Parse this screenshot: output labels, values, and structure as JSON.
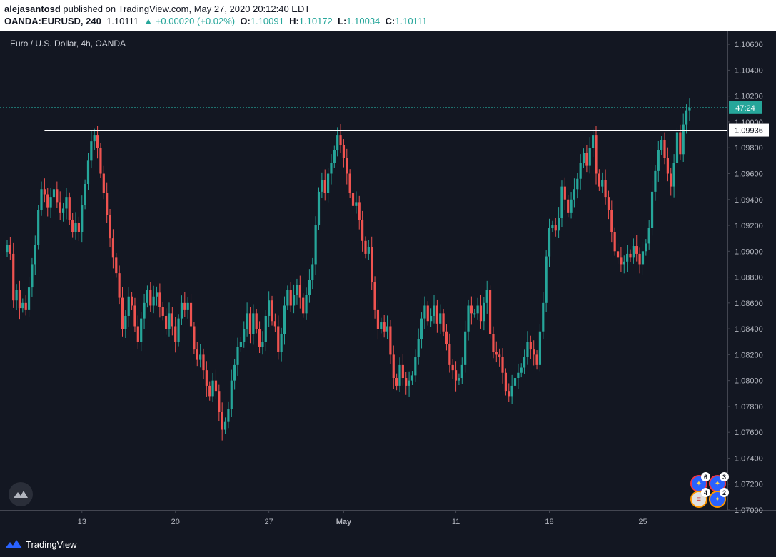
{
  "header": {
    "author": "alejasantosd",
    "published_text": " published on TradingView.com, May 27, 2020 20:12:40 EDT",
    "symbol": "OANDA:EURUSD, 240",
    "last": "1.10111",
    "change": "▲ +0.00020 (+0.02%)",
    "o_label": "O:",
    "o_value": "1.10091",
    "h_label": "H:",
    "h_value": "1.10172",
    "l_label": "L:",
    "l_value": "1.10034",
    "c_label": "C:",
    "c_value": "1.10111"
  },
  "chart_title": "Euro / U.S. Dollar, 4h, OANDA",
  "footer": {
    "brand": "TradingView"
  },
  "colors": {
    "background": "#131722",
    "up": "#26a69a",
    "down": "#ef5350",
    "axis_line": "#2a2e39",
    "text": "#b2b5be"
  },
  "events": [
    {
      "icon": "eu-flag-icon",
      "count": "6"
    },
    {
      "icon": "eu-flag-icon",
      "count": "3"
    },
    {
      "icon": "us-flag-icon",
      "count": "4"
    },
    {
      "icon": "eu-flag-icon",
      "count": "2"
    }
  ],
  "chart_data": {
    "type": "candlestick",
    "title": "Euro / U.S. Dollar, 4h, OANDA",
    "ylim": [
      1.07,
      1.107
    ],
    "y_ticks": [
      "1.10600",
      "1.10400",
      "1.10200",
      "1.10000",
      "1.09800",
      "1.09600",
      "1.09400",
      "1.09200",
      "1.09000",
      "1.08800",
      "1.08600",
      "1.08400",
      "1.08200",
      "1.08000",
      "1.07800",
      "1.07600",
      "1.07400",
      "1.07200",
      "1.07000"
    ],
    "x_ticks": [
      {
        "label": "13",
        "candle": 24
      },
      {
        "label": "20",
        "candle": 54
      },
      {
        "label": "27",
        "candle": 84
      },
      {
        "label": "May",
        "candle": 108
      },
      {
        "label": "11",
        "candle": 144
      },
      {
        "label": "18",
        "candle": 174
      },
      {
        "label": "25",
        "candle": 204
      }
    ],
    "horizontal_line": {
      "value": 1.09936,
      "label": "1.09936"
    },
    "current_price": {
      "value": 1.10111,
      "label": "47:24"
    },
    "closes": [
      1.0905,
      1.0898,
      1.0862,
      1.087,
      1.0856,
      1.086,
      1.0855,
      1.0872,
      1.089,
      1.0905,
      1.0932,
      1.0948,
      1.0944,
      1.0934,
      1.0942,
      1.0948,
      1.0938,
      1.093,
      1.0933,
      1.0942,
      1.0924,
      1.0915,
      1.0922,
      1.0915,
      1.0936,
      1.0952,
      1.097,
      1.0985,
      1.099,
      1.098,
      1.096,
      1.0945,
      1.0928,
      1.091,
      1.0895,
      1.0883,
      1.0864,
      1.084,
      1.085,
      1.0865,
      1.0858,
      1.0842,
      1.083,
      1.0848,
      1.086,
      1.087,
      1.0858,
      1.0865,
      1.0868,
      1.0857,
      1.085,
      1.084,
      1.0852,
      1.0842,
      1.083,
      1.0848,
      1.086,
      1.0855,
      1.086,
      1.0842,
      1.0824,
      1.0816,
      1.082,
      1.0808,
      1.0796,
      1.0788,
      1.08,
      1.0792,
      1.0776,
      1.0762,
      1.0768,
      1.0778,
      1.08,
      1.0812,
      1.0826,
      1.083,
      1.084,
      1.0852,
      1.0836,
      1.0852,
      1.084,
      1.0826,
      1.083,
      1.085,
      1.0862,
      1.0846,
      1.0842,
      1.0822,
      1.0836,
      1.0858,
      1.087,
      1.0858,
      1.0866,
      1.0874,
      1.0864,
      1.0852,
      1.0866,
      1.0878,
      1.089,
      1.092,
      1.0946,
      1.0955,
      1.0945,
      1.096,
      1.0968,
      1.0978,
      1.099,
      1.0982,
      1.0972,
      1.096,
      1.0945,
      1.0935,
      1.0938,
      1.0924,
      1.0908,
      1.0898,
      1.0903,
      1.0876,
      1.0855,
      1.084,
      1.0845,
      1.0838,
      1.0842,
      1.082,
      1.0802,
      1.0796,
      1.0812,
      1.0802,
      1.0796,
      1.08,
      1.0804,
      1.0818,
      1.0832,
      1.0848,
      1.0858,
      1.0846,
      1.085,
      1.0858,
      1.0844,
      1.0852,
      1.0838,
      1.0828,
      1.0812,
      1.0808,
      1.08,
      1.0802,
      1.0812,
      1.0838,
      1.0858,
      1.0852,
      1.0852,
      1.0858,
      1.0846,
      1.086,
      1.087,
      1.0836,
      1.0822,
      1.082,
      1.0818,
      1.0806,
      1.0792,
      1.0788,
      1.0796,
      1.0802,
      1.0806,
      1.081,
      1.0818,
      1.083,
      1.0824,
      1.082,
      1.0812,
      1.0838,
      1.086,
      1.0896,
      1.0918,
      1.092,
      1.0916,
      1.0926,
      1.095,
      1.094,
      1.093,
      1.094,
      1.0948,
      1.0956,
      1.0968,
      1.0976,
      1.0966,
      1.098,
      1.099,
      1.096,
      1.095,
      1.0955,
      1.0942,
      1.0932,
      1.0915,
      1.09,
      1.0895,
      1.089,
      1.0892,
      1.0898,
      1.0895,
      1.0904,
      1.0898,
      1.089,
      1.09,
      1.0906,
      1.0918,
      1.0946,
      1.0962,
      1.0978,
      1.0986,
      1.0972,
      1.096,
      1.095,
      1.0968,
      1.0992,
      1.0975,
      1.0998,
      1.1009,
      1.1011
    ]
  }
}
